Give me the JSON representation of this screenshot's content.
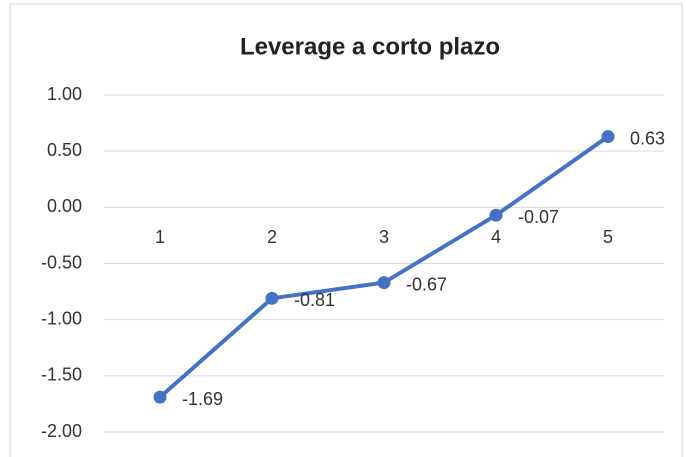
{
  "chart_data": {
    "type": "line",
    "title": "Leverage a corto plazo",
    "categories": [
      "1",
      "2",
      "3",
      "4",
      "5"
    ],
    "series": [
      {
        "name": "Leverage a corto plazo",
        "color": "#4472c4",
        "values": [
          -1.69,
          -0.81,
          -0.67,
          -0.07,
          0.63
        ]
      }
    ],
    "ylim": [
      -2,
      1
    ],
    "yticks": [
      {
        "value": 1,
        "label": "1.00"
      },
      {
        "value": 0.5,
        "label": "0.50"
      },
      {
        "value": 0,
        "label": "0.00"
      },
      {
        "value": -0.5,
        "label": "-0.50"
      },
      {
        "value": -1,
        "label": "-1.00"
      },
      {
        "value": -1.5,
        "label": "-1.50"
      },
      {
        "value": -2,
        "label": "-2.00"
      }
    ],
    "grid": true
  }
}
